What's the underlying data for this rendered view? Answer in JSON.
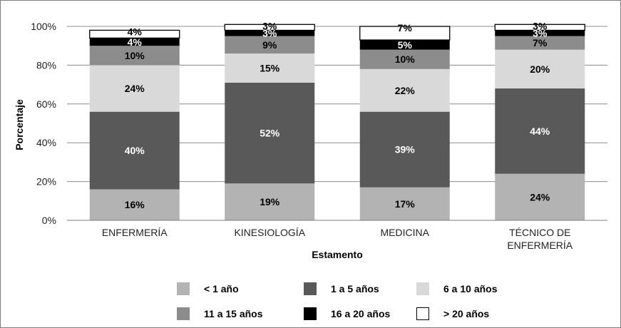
{
  "chart_data": {
    "type": "bar",
    "stacked": true,
    "xlabel": "Estamento",
    "ylabel": "Porcentaje",
    "ylim": [
      0,
      100
    ],
    "y_ticks": [
      "0%",
      "20%",
      "40%",
      "60%",
      "80%",
      "100%"
    ],
    "categories": [
      [
        "ENFERMERÍA"
      ],
      [
        "KINESIOLOGÍA"
      ],
      [
        "MEDICINA"
      ],
      [
        "TÉCNICO DE",
        "ENFERMERÍA"
      ]
    ],
    "series": [
      {
        "name": "< 1 año",
        "color": "#b3b3b3",
        "label_color": "#000000",
        "values": [
          16,
          19,
          17,
          24
        ],
        "labels": [
          "16%",
          "19%",
          "17%",
          "24%"
        ]
      },
      {
        "name": "1 a 5 años",
        "color": "#595959",
        "label_color": "#ffffff",
        "values": [
          40,
          52,
          39,
          44
        ],
        "labels": [
          "40%",
          "52%",
          "39%",
          "44%"
        ]
      },
      {
        "name": "6 a 10 años",
        "color": "#d9d9d9",
        "label_color": "#000000",
        "values": [
          24,
          15,
          22,
          20
        ],
        "labels": [
          "24%",
          "15%",
          "22%",
          "20%"
        ]
      },
      {
        "name": "11 a 15 años",
        "color": "#8c8c8c",
        "label_color": "#000000",
        "values": [
          10,
          9,
          10,
          7
        ],
        "labels": [
          "10%",
          "9%",
          "10%",
          "7%"
        ]
      },
      {
        "name": "16 a 20 años",
        "color": "#000000",
        "label_color": "#ffffff",
        "values": [
          4,
          3,
          5,
          3
        ],
        "labels": [
          "4%",
          "3%",
          "5%",
          "3%"
        ]
      },
      {
        "name": "> 20 años",
        "color": "#ffffff",
        "label_color": "#000000",
        "values": [
          4,
          3,
          7,
          3
        ],
        "labels": [
          "4%",
          "3%",
          "7%",
          "3%"
        ]
      }
    ],
    "grid": true,
    "legend_position": "bottom"
  }
}
